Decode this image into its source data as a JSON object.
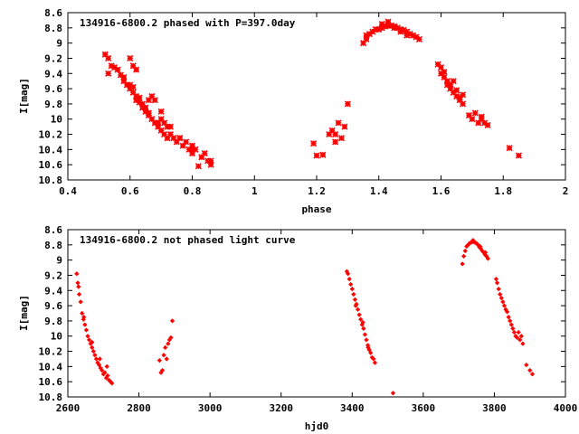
{
  "colors": {
    "points": "#ff0000",
    "axis": "#000000",
    "background": "#ffffff"
  },
  "chart_data": [
    {
      "type": "scatter",
      "title": "134916-6800.2 phased with P=397.0day",
      "xlabel": "phase",
      "ylabel": "I[mag]",
      "xlim": [
        0.4,
        2.0
      ],
      "ylim": [
        8.6,
        10.8
      ],
      "y_inverted": true,
      "grid": false,
      "marker": "star",
      "x_ticks": [
        "0.4",
        "0.6",
        "0.8",
        "1",
        "1.2",
        "1.4",
        "1.6",
        "1.8",
        "2"
      ],
      "y_ticks": [
        "8.6",
        "8.8",
        "9",
        "9.2",
        "9.4",
        "9.6",
        "9.8",
        "10",
        "10.2",
        "10.4",
        "10.6",
        "10.8"
      ],
      "series": [
        {
          "x": [
            0.52,
            0.53,
            0.54,
            0.55,
            0.56,
            0.57,
            0.58,
            0.58,
            0.59,
            0.6,
            0.6,
            0.61,
            0.61,
            0.62,
            0.62,
            0.63,
            0.63,
            0.64,
            0.64,
            0.65,
            0.65,
            0.66,
            0.66,
            0.67,
            0.67,
            0.68,
            0.68,
            0.69,
            0.69,
            0.7,
            0.7,
            0.71,
            0.71,
            0.72,
            0.72,
            0.73,
            0.74,
            0.75,
            0.76,
            0.77,
            0.78,
            0.79,
            0.8,
            0.8,
            0.81,
            0.83,
            0.84,
            0.85,
            0.86,
            0.86,
            0.6,
            0.61,
            0.62,
            0.53,
            0.66,
            0.7,
            0.73,
            0.76,
            0.8,
            0.82,
            1.19,
            1.2,
            1.22,
            1.24,
            1.25,
            1.26,
            1.26,
            1.27,
            1.28,
            1.29,
            1.3,
            1.35,
            1.36,
            1.36,
            1.37,
            1.38,
            1.39,
            1.4,
            1.41,
            1.42,
            1.43,
            1.44,
            1.45,
            1.46,
            1.47,
            1.48,
            1.49,
            1.5,
            1.51,
            1.52,
            1.53,
            1.41,
            1.43,
            1.45,
            1.47,
            1.49,
            1.59,
            1.6,
            1.6,
            1.61,
            1.62,
            1.62,
            1.63,
            1.63,
            1.64,
            1.65,
            1.65,
            1.66,
            1.66,
            1.67,
            1.69,
            1.7,
            1.71,
            1.72,
            1.73,
            1.74,
            1.75,
            1.61,
            1.64,
            1.67,
            1.73,
            1.82,
            1.85
          ],
          "y": [
            9.15,
            9.2,
            9.3,
            9.32,
            9.35,
            9.42,
            9.45,
            9.5,
            9.55,
            9.55,
            9.6,
            9.65,
            9.58,
            9.7,
            9.75,
            9.78,
            9.72,
            9.8,
            9.85,
            9.85,
            9.9,
            9.92,
            9.95,
            9.7,
            10.0,
            10.05,
            9.75,
            10.05,
            10.1,
            10.0,
            10.15,
            10.05,
            10.2,
            10.1,
            10.25,
            10.2,
            10.25,
            10.3,
            10.25,
            10.35,
            10.3,
            10.4,
            10.35,
            10.45,
            10.4,
            10.5,
            10.45,
            10.55,
            10.6,
            10.55,
            9.2,
            9.3,
            9.35,
            9.4,
            9.75,
            9.9,
            10.1,
            10.25,
            10.4,
            10.62,
            10.32,
            10.48,
            10.47,
            10.2,
            10.15,
            10.3,
            10.2,
            10.05,
            10.25,
            10.1,
            9.8,
            9.0,
            8.95,
            8.9,
            8.88,
            8.85,
            8.82,
            8.82,
            8.8,
            8.78,
            8.77,
            8.77,
            8.78,
            8.8,
            8.82,
            8.83,
            8.85,
            8.88,
            8.9,
            8.92,
            8.95,
            8.75,
            8.72,
            8.8,
            8.85,
            8.9,
            9.28,
            9.32,
            9.4,
            9.45,
            9.5,
            9.55,
            9.6,
            9.55,
            9.65,
            9.7,
            9.62,
            9.75,
            9.72,
            9.8,
            9.95,
            10.0,
            9.92,
            10.05,
            10.0,
            10.05,
            10.08,
            9.38,
            9.5,
            9.68,
            9.97,
            10.38,
            10.48
          ]
        }
      ]
    },
    {
      "type": "scatter",
      "title": "134916-6800.2 not phased light curve",
      "xlabel": "hjd0",
      "ylabel": "I[mag]",
      "xlim": [
        2600,
        4000
      ],
      "ylim": [
        8.6,
        10.8
      ],
      "y_inverted": true,
      "grid": false,
      "marker": "diamond",
      "x_ticks": [
        "2600",
        "2800",
        "3000",
        "3200",
        "3400",
        "3600",
        "3800",
        "4000"
      ],
      "y_ticks": [
        "8.6",
        "8.8",
        "9",
        "9.2",
        "9.4",
        "9.6",
        "9.8",
        "10",
        "10.2",
        "10.4",
        "10.6",
        "10.8"
      ],
      "series": [
        {
          "x": [
            2625,
            2628,
            2632,
            2636,
            2640,
            2644,
            2648,
            2652,
            2656,
            2660,
            2664,
            2668,
            2672,
            2676,
            2680,
            2684,
            2688,
            2692,
            2696,
            2700,
            2704,
            2708,
            2712,
            2716,
            2720,
            2724,
            2630,
            2645,
            2668,
            2690,
            2710,
            2858,
            2862,
            2866,
            2870,
            2874,
            2878,
            2882,
            2886,
            2890,
            2894,
            3385,
            3388,
            3392,
            3396,
            3400,
            3404,
            3408,
            3412,
            3416,
            3420,
            3424,
            3428,
            3432,
            3436,
            3440,
            3444,
            3448,
            3452,
            3456,
            3460,
            3464,
            3410,
            3430,
            3445,
            3515,
            3710,
            3714,
            3718,
            3722,
            3726,
            3730,
            3734,
            3738,
            3742,
            3746,
            3750,
            3754,
            3758,
            3762,
            3766,
            3770,
            3774,
            3778,
            3782,
            3740,
            3760,
            3775,
            3805,
            3808,
            3812,
            3816,
            3820,
            3824,
            3828,
            3832,
            3836,
            3840,
            3844,
            3848,
            3852,
            3856,
            3860,
            3864,
            3868,
            3872,
            3876,
            3880,
            3890,
            3900,
            3907
          ],
          "y": [
            9.18,
            9.3,
            9.45,
            9.55,
            9.7,
            9.78,
            9.85,
            9.92,
            10.0,
            10.05,
            10.1,
            10.15,
            10.2,
            10.25,
            10.3,
            10.35,
            10.38,
            10.42,
            10.45,
            10.5,
            10.48,
            10.55,
            10.52,
            10.58,
            10.6,
            10.62,
            9.35,
            9.75,
            10.08,
            10.3,
            10.4,
            10.32,
            10.48,
            10.45,
            10.25,
            10.15,
            10.3,
            10.1,
            10.05,
            10.02,
            9.8,
            9.15,
            9.18,
            9.25,
            9.32,
            9.38,
            9.45,
            9.52,
            9.58,
            9.65,
            9.72,
            9.78,
            9.85,
            9.9,
            9.98,
            10.05,
            10.12,
            10.18,
            10.22,
            10.28,
            10.3,
            10.35,
            9.6,
            9.82,
            10.15,
            10.75,
            9.05,
            8.95,
            8.88,
            8.82,
            8.8,
            8.78,
            8.77,
            8.76,
            8.76,
            8.77,
            8.78,
            8.8,
            8.83,
            8.85,
            8.88,
            8.9,
            8.93,
            8.95,
            8.98,
            8.74,
            8.82,
            8.9,
            9.25,
            9.3,
            9.38,
            9.45,
            9.5,
            9.55,
            9.6,
            9.65,
            9.68,
            9.75,
            9.8,
            9.85,
            9.9,
            9.95,
            10.0,
            10.02,
            9.95,
            10.05,
            10.0,
            10.1,
            10.38,
            10.45,
            10.5
          ]
        }
      ]
    }
  ]
}
